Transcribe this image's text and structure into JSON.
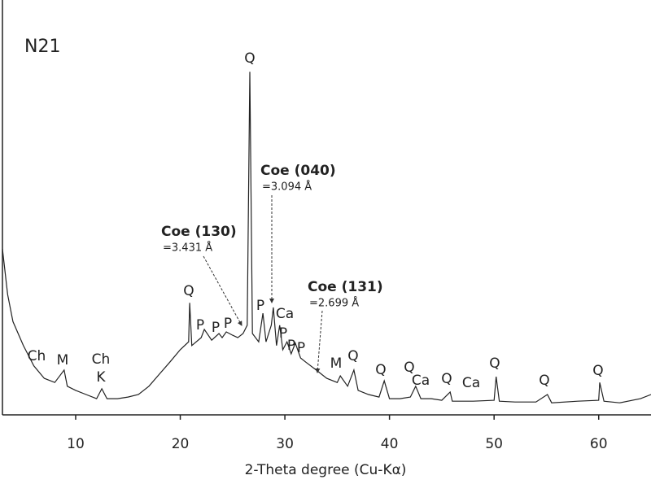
{
  "chart_data": {
    "type": "line",
    "title": "N21",
    "x_label": "2-Theta degree (Cu-Kα)",
    "x": [
      3.0,
      3.5,
      4,
      5,
      6,
      7,
      8,
      8.9,
      9.2,
      10,
      11,
      12,
      12.5,
      13,
      14,
      15,
      16,
      17,
      18,
      19,
      20,
      20.8,
      20.9,
      21.1,
      22,
      22.3,
      23,
      23.7,
      24,
      24.4,
      25,
      25.5,
      26,
      26.4,
      26.65,
      26.9,
      27.5,
      27.9,
      28.2,
      28.7,
      28.9,
      29.2,
      29.5,
      29.8,
      30.2,
      30.6,
      31.0,
      31.5,
      32,
      33,
      34,
      35,
      35.3,
      36,
      36.6,
      37,
      38,
      39,
      39.5,
      40,
      41,
      42,
      42.5,
      43,
      44,
      45,
      45.8,
      46,
      48,
      50,
      50.2,
      50.5,
      52,
      54,
      55.1,
      55.5,
      58,
      60,
      60.1,
      60.5,
      62,
      64,
      65
    ],
    "values": [
      40,
      29,
      22.5,
      16.7,
      11.8,
      8.8,
      7.8,
      10.8,
      6.9,
      5.9,
      4.9,
      3.9,
      6.3,
      3.9,
      3.9,
      4.3,
      4.9,
      6.9,
      9.8,
      12.7,
      15.7,
      17.6,
      27,
      16.7,
      18.6,
      20.6,
      18,
      19.6,
      18.6,
      20,
      19.2,
      18.6,
      19.6,
      21.6,
      82.7,
      19.6,
      17.6,
      24.5,
      17.6,
      21.6,
      25.9,
      16.7,
      21.6,
      15.7,
      17.6,
      14.7,
      17.3,
      13.7,
      12.7,
      10.8,
      8.8,
      7.8,
      9.4,
      6.9,
      10.8,
      5.9,
      4.9,
      4.3,
      8.2,
      3.9,
      3.9,
      4.3,
      6.9,
      3.9,
      3.9,
      3.5,
      5.5,
      3.3,
      3.3,
      3.5,
      9.2,
      3.3,
      3.1,
      3.1,
      4.9,
      2.9,
      3.3,
      3.5,
      7.8,
      3.3,
      2.9,
      3.9,
      4.9
    ],
    "color": "#222222",
    "xlim": [
      3,
      65
    ],
    "ylim": [
      0,
      100
    ],
    "xticks": [
      10,
      20,
      30,
      40,
      50,
      60
    ],
    "annotations": [
      "Ch",
      "M",
      "Ch",
      "K",
      "Q",
      "P",
      "P",
      "P",
      "Q",
      "P",
      "Ca",
      "P",
      "P",
      "P",
      "M",
      "Q",
      "Q",
      "Q",
      "Ca",
      "Q",
      "Ca",
      "Q",
      "Q",
      "Q"
    ],
    "callouts": [
      {
        "label": "Coe (130)",
        "value": "=3.431 Å"
      },
      {
        "label": "Coe (040)",
        "value": "=3.094 Å"
      },
      {
        "label": "Coe (131)",
        "value": "=2.699 Å"
      }
    ]
  }
}
